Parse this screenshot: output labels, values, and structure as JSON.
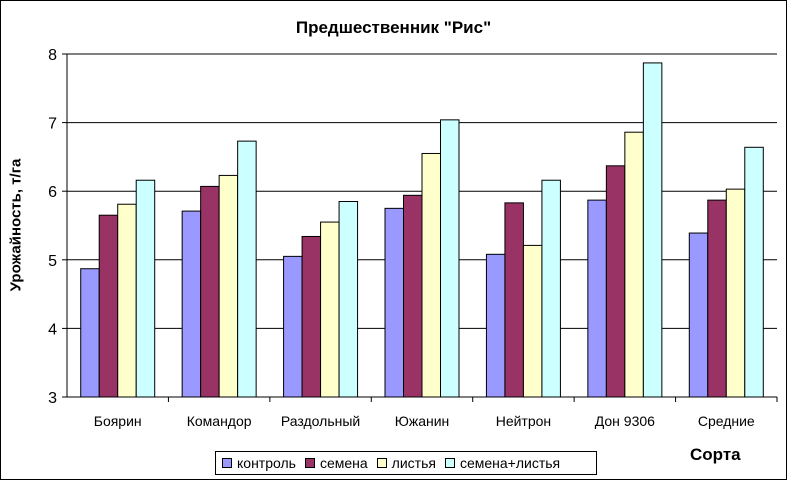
{
  "chart_data": {
    "type": "bar",
    "title": "Предшественник \"Рис\"",
    "xlabel": "Сорта",
    "ylabel": "Урожайность, т/га",
    "ylim": [
      3,
      8
    ],
    "yticks": [
      3,
      4,
      5,
      6,
      7,
      8
    ],
    "grid": true,
    "legend_position": "bottom",
    "categories": [
      "Боярин",
      "Командор",
      "Раздольный",
      "Южанин",
      "Нейтрон",
      "Дон 9306",
      "Средние"
    ],
    "series": [
      {
        "name": "контроль",
        "color": "#9999ff",
        "values": [
          4.87,
          5.71,
          5.05,
          5.75,
          5.08,
          5.87,
          5.39
        ]
      },
      {
        "name": "семена",
        "color": "#993366",
        "values": [
          5.65,
          6.07,
          5.34,
          5.94,
          5.83,
          6.37,
          5.87
        ]
      },
      {
        "name": "листья",
        "color": "#ffffcc",
        "values": [
          5.81,
          6.23,
          5.55,
          6.55,
          5.21,
          6.86,
          6.03
        ]
      },
      {
        "name": "семена+листья",
        "color": "#ccffff",
        "values": [
          6.16,
          6.73,
          5.85,
          7.04,
          6.16,
          7.87,
          6.64
        ]
      }
    ]
  }
}
